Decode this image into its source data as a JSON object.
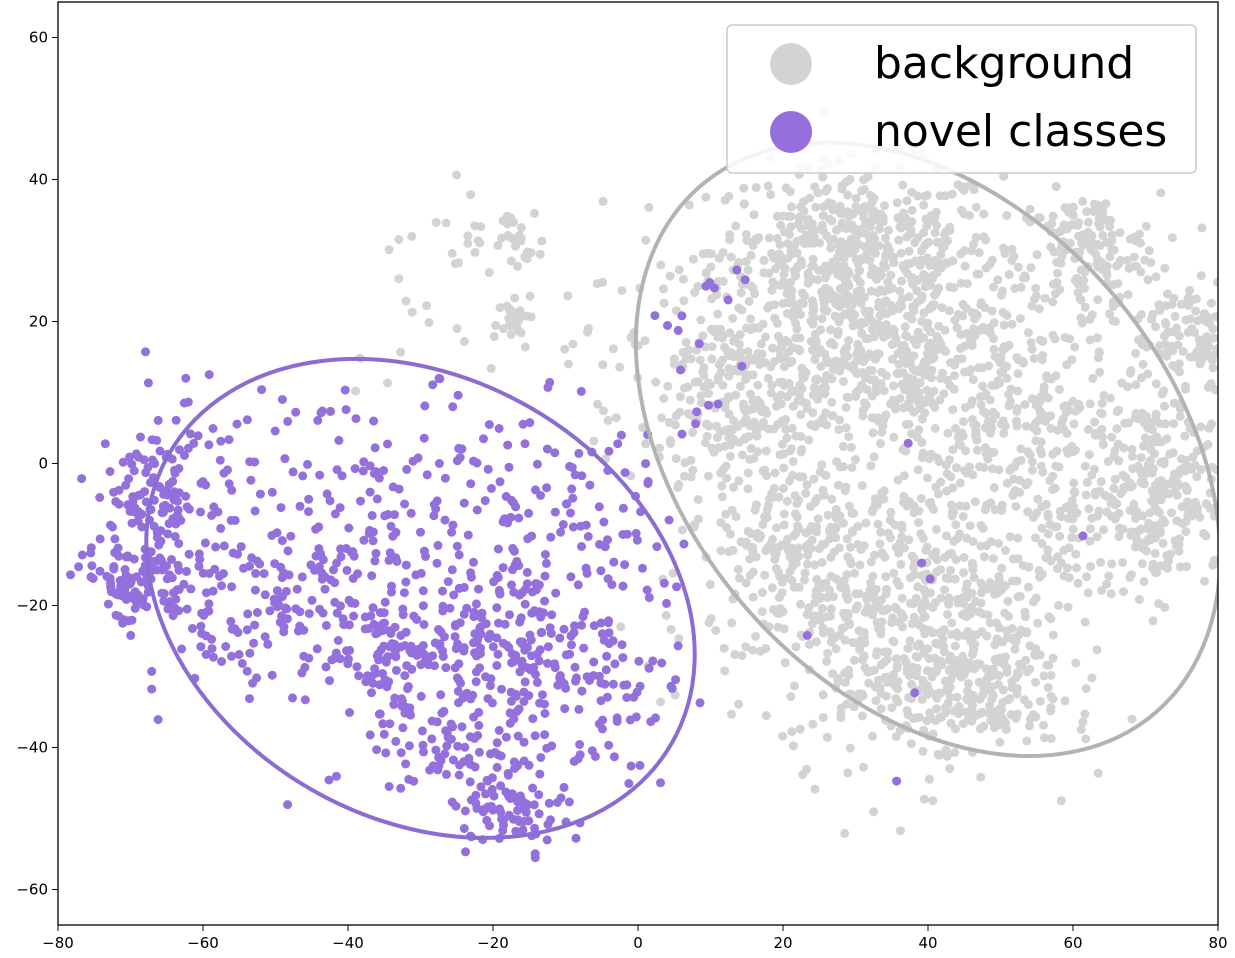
{
  "chart_data": {
    "type": "scatter",
    "title": "",
    "xlabel": "",
    "ylabel": "",
    "xlim": [
      -80,
      80
    ],
    "ylim": [
      -65,
      65
    ],
    "x_ticks": [
      -80,
      -60,
      -40,
      -20,
      0,
      20,
      40,
      60,
      80
    ],
    "y_ticks": [
      -60,
      -40,
      -20,
      0,
      20,
      40,
      60
    ],
    "x_tick_labels": [
      "−80",
      "−60",
      "−40",
      "−20",
      "0",
      "20",
      "40",
      "60",
      "80"
    ],
    "y_tick_labels": [
      "−60",
      "−40",
      "−20",
      "0",
      "20",
      "40",
      "60"
    ],
    "grid": false,
    "legend_position": "top-right",
    "series": [
      {
        "name": "background",
        "color": "#d3d3d3",
        "marker": "circle",
        "clusters": [
          {
            "center": [
              30,
              30
            ],
            "spread": [
              10,
              6
            ],
            "n": 500
          },
          {
            "center": [
              62,
              30
            ],
            "spread": [
              5,
              4
            ],
            "n": 150
          },
          {
            "center": [
              35,
              15
            ],
            "spread": [
              12,
              7
            ],
            "n": 450
          },
          {
            "center": [
              15,
              8
            ],
            "spread": [
              8,
              8
            ],
            "n": 300
          },
          {
            "center": [
              72,
              -4
            ],
            "spread": [
              5,
              7
            ],
            "n": 220
          },
          {
            "center": [
              76,
              18
            ],
            "spread": [
              4,
              4
            ],
            "n": 120
          },
          {
            "center": [
              38,
              -22
            ],
            "spread": [
              9,
              10
            ],
            "n": 450
          },
          {
            "center": [
              45,
              -32
            ],
            "spread": [
              7,
              4
            ],
            "n": 180
          },
          {
            "center": [
              55,
              0
            ],
            "spread": [
              10,
              12
            ],
            "n": 400
          },
          {
            "center": [
              22,
              -15
            ],
            "spread": [
              6,
              8
            ],
            "n": 200
          },
          {
            "center": [
              -17,
              32
            ],
            "spread": [
              2,
              2
            ],
            "n": 25
          },
          {
            "center": [
              -17,
              21
            ],
            "spread": [
              2,
              2
            ],
            "n": 25
          },
          {
            "center": [
              -24,
              33
            ],
            "spread": [
              2,
              3
            ],
            "n": 15
          },
          {
            "center": [
              -33,
              22
            ],
            "spread": [
              4,
              5
            ],
            "n": 15
          },
          {
            "center": [
              -5,
              18
            ],
            "spread": [
              4,
              4
            ],
            "n": 15
          },
          {
            "center": [
              6,
              -22
            ],
            "spread": [
              3,
              6
            ],
            "n": 10
          }
        ]
      },
      {
        "name": "novel classes",
        "color": "#9370db",
        "marker": "circle",
        "clusters": [
          {
            "center": [
              -67,
              -5
            ],
            "spread": [
              4,
              4
            ],
            "n": 90
          },
          {
            "center": [
              -69,
              -17
            ],
            "spread": [
              4,
              3
            ],
            "n": 110
          },
          {
            "center": [
              -55,
              -20
            ],
            "spread": [
              5,
              6
            ],
            "n": 60
          },
          {
            "center": [
              -45,
              -20
            ],
            "spread": [
              8,
              10
            ],
            "n": 140
          },
          {
            "center": [
              -32,
              -28
            ],
            "spread": [
              4,
              4
            ],
            "n": 90
          },
          {
            "center": [
              -33,
              -8
            ],
            "spread": [
              8,
              9
            ],
            "n": 100
          },
          {
            "center": [
              -16,
              -24
            ],
            "spread": [
              5,
              5
            ],
            "n": 110
          },
          {
            "center": [
              -17,
              -48
            ],
            "spread": [
              4,
              3
            ],
            "n": 80
          },
          {
            "center": [
              -25,
              -40
            ],
            "spread": [
              6,
              5
            ],
            "n": 80
          },
          {
            "center": [
              -8,
              -32
            ],
            "spread": [
              7,
              6
            ],
            "n": 90
          },
          {
            "center": [
              -18,
              -8
            ],
            "spread": [
              8,
              9
            ],
            "n": 80
          },
          {
            "center": [
              -5,
              -15
            ],
            "spread": [
              5,
              9
            ],
            "n": 50
          },
          {
            "center": [
              -60,
              0
            ],
            "spread": [
              8,
              6
            ],
            "n": 50
          },
          {
            "center": [
              8,
              15
            ],
            "spread": [
              4,
              14
            ],
            "n": 20
          },
          {
            "center": [
              40,
              -10
            ],
            "spread": [
              25,
              25
            ],
            "n": 10
          }
        ]
      }
    ],
    "ellipses": [
      {
        "series": "novel classes",
        "color": "#8a6cd2",
        "center": [
          -30,
          -19
        ],
        "rx": 40,
        "ry": 31,
        "rotation_deg": -30
      },
      {
        "series": "background",
        "color": "#b3b3b3",
        "center": [
          40,
          2
        ],
        "rx": 48,
        "ry": 34,
        "rotation_deg": -49
      }
    ]
  }
}
